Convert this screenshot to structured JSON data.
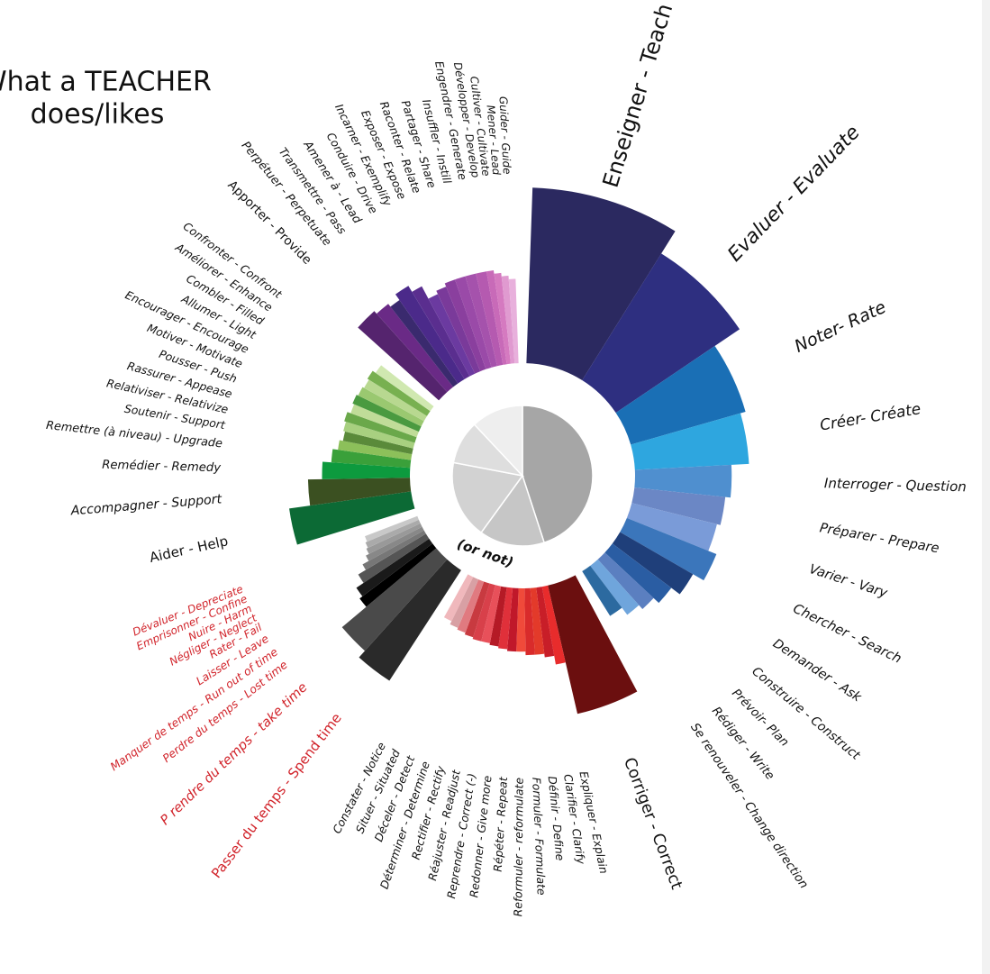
{
  "chart_data": {
    "type": "radial-bar",
    "title": "What a TEACHER",
    "subtitle": "does/likes",
    "annotation": "(or not)",
    "center": {
      "values": [
        45,
        15,
        18,
        10,
        12
      ],
      "colors": [
        "#a6a6a6",
        "#c6c6c6",
        "#d2d2d2",
        "#dedede",
        "#eeeeee"
      ]
    },
    "series": [
      {
        "label_color": "#111111",
        "categories": [
          "Enseigner - Teach",
          "Evaluer - Evaluate",
          "Noter- Rate",
          "Créer- Créate",
          "Interroger - Question",
          "Préparer - Prepare",
          "Varier - Vary",
          "Chercher - Search",
          "Demander - Ask",
          "Construire - Construct",
          "Prévoir- Plan",
          "Rédiger - Write",
          "Se renouveler - Change direction"
        ],
        "values": [
          100,
          85,
          68,
          65,
          55,
          52,
          50,
          55,
          48,
          42,
          38,
          35,
          30
        ],
        "widths": [
          30,
          24,
          18,
          13,
          9,
          8,
          8,
          8,
          7,
          6,
          5,
          5,
          5
        ],
        "colors": [
          "#2b2960",
          "#2e2f80",
          "#1a6fb5",
          "#2ea6df",
          "#4f8fcf",
          "#6b87c5",
          "#7a9bd8",
          "#3b76bb",
          "#1f3f7a",
          "#2a5da3",
          "#5b7fc0",
          "#6fa5dc",
          "#2c6aa0"
        ]
      },
      {
        "label_color": "#111111",
        "categories": [
          "Corriger - Correct",
          "Expliquer - Explain",
          "Clarifier - Clarify",
          "Définir - Define",
          "Formuler - Formulate",
          "Reformuler - reformulate",
          "Répéter - Repeat",
          "Redonner - Give more",
          "Reprendre - Correct (-)",
          "Réajuster - Readjust",
          "Rectifier - Rectify",
          "Déterminer - Determine",
          "Déceler - Detect",
          "Situer - Situated",
          "Constater - Notice"
        ],
        "values": [
          75,
          45,
          40,
          38,
          38,
          36,
          36,
          35,
          34,
          33,
          33,
          32,
          31,
          30,
          28
        ],
        "widths": [
          15,
          3,
          3,
          3,
          3,
          3,
          3,
          3,
          3,
          3,
          3,
          3,
          3,
          3,
          3
        ],
        "colors": [
          "#6b0f0f",
          "#e82c2c",
          "#c81e28",
          "#e33a2a",
          "#d92b2b",
          "#f04a3a",
          "#c0182a",
          "#e0303a",
          "#b51a26",
          "#e8505a",
          "#d8404a",
          "#c83a40",
          "#e07a80",
          "#d8a0a4",
          "#f0b8bc"
        ]
      },
      {
        "label_color": "#d1232a",
        "categories": [
          "Passer du temps - Spend time",
          "P rendre du temps - take time",
          "Perdre du temps - Lost time",
          "Manquer de temps - Run out of  time",
          "Laisser - Leave",
          "Rater - Fail",
          "Négliger - Neglect",
          "Nuire - Harm",
          "Emprisonner - Confine",
          "Dévaluer - Depreciate"
        ],
        "values": [
          75,
          70,
          52,
          50,
          45,
          40,
          36,
          34,
          33,
          32
        ],
        "widths": [
          9,
          8,
          3,
          3,
          3,
          2,
          2,
          2,
          2,
          2
        ],
        "colors": [
          "#2a2a2a",
          "#4a4a4a",
          "#000000",
          "#1a1a1a",
          "#555555",
          "#777777",
          "#888888",
          "#999999",
          "#aaaaaa",
          "#c8c8c8"
        ]
      },
      {
        "label_color": "#111111",
        "categories": [
          "Aider - Help",
          "Accompagner - Support",
          "Remédier - Remedy",
          "Remettre (à niveau) - Upgrade",
          "Soutenir - Support",
          "Relativiser - Relativize",
          "Rassurer - Appease",
          "Pousser - Push",
          "Motiver - Motivate",
          "Encourager - Encourage",
          "Allumer - Light",
          "Combler - Filled",
          "Améliorer - Enhance",
          "Confronter - Confront"
        ],
        "values": [
          70,
          58,
          50,
          45,
          42,
          40,
          41,
          42,
          40,
          41,
          40,
          39,
          40,
          38
        ],
        "widths": [
          9,
          7,
          5,
          4,
          3,
          3,
          3,
          3,
          3,
          3,
          3,
          3,
          3,
          3
        ],
        "colors": [
          "#0c6a35",
          "#3b5021",
          "#0d9a3e",
          "#3aa03a",
          "#8cc05a",
          "#5a8a3a",
          "#a8d080",
          "#6aa84a",
          "#c0dc98",
          "#4a9a40",
          "#9ac870",
          "#b8d890",
          "#78b050",
          "#d0e8b0"
        ]
      },
      {
        "label_color": "#111111",
        "categories": [
          "Apporter - Provide",
          "Perpétuer - Perpetuate",
          "Transmettre - Pass",
          "Amener à - Lead",
          "Conduire - Drive",
          "Incarner - Exemplify",
          "Exposer - Expose",
          "Raconter - Relate",
          "Partager - Share",
          "Insuffler - Instill",
          "Engendrer - Generate",
          "Développer - Develop",
          "Cultiver - Cultivate",
          "Mener - Lead",
          "Guider - Guide"
        ],
        "values": [
          62,
          60,
          58,
          62,
          58,
          50,
          52,
          54,
          54,
          54,
          54,
          54,
          52,
          50,
          48
        ],
        "widths": [
          6,
          4,
          3,
          4,
          3,
          3,
          3,
          3,
          3,
          3,
          3,
          2,
          2,
          2,
          2
        ],
        "colors": [
          "#55246e",
          "#6a2a86",
          "#3a2a6e",
          "#4b2a8a",
          "#5a2e8f",
          "#6b3aa0",
          "#7a3a9a",
          "#8a3f9e",
          "#9a4aa8",
          "#a552ac",
          "#b55ab0",
          "#c86ab8",
          "#d57ac0",
          "#e09ad0",
          "#e8b0dc"
        ]
      }
    ]
  }
}
